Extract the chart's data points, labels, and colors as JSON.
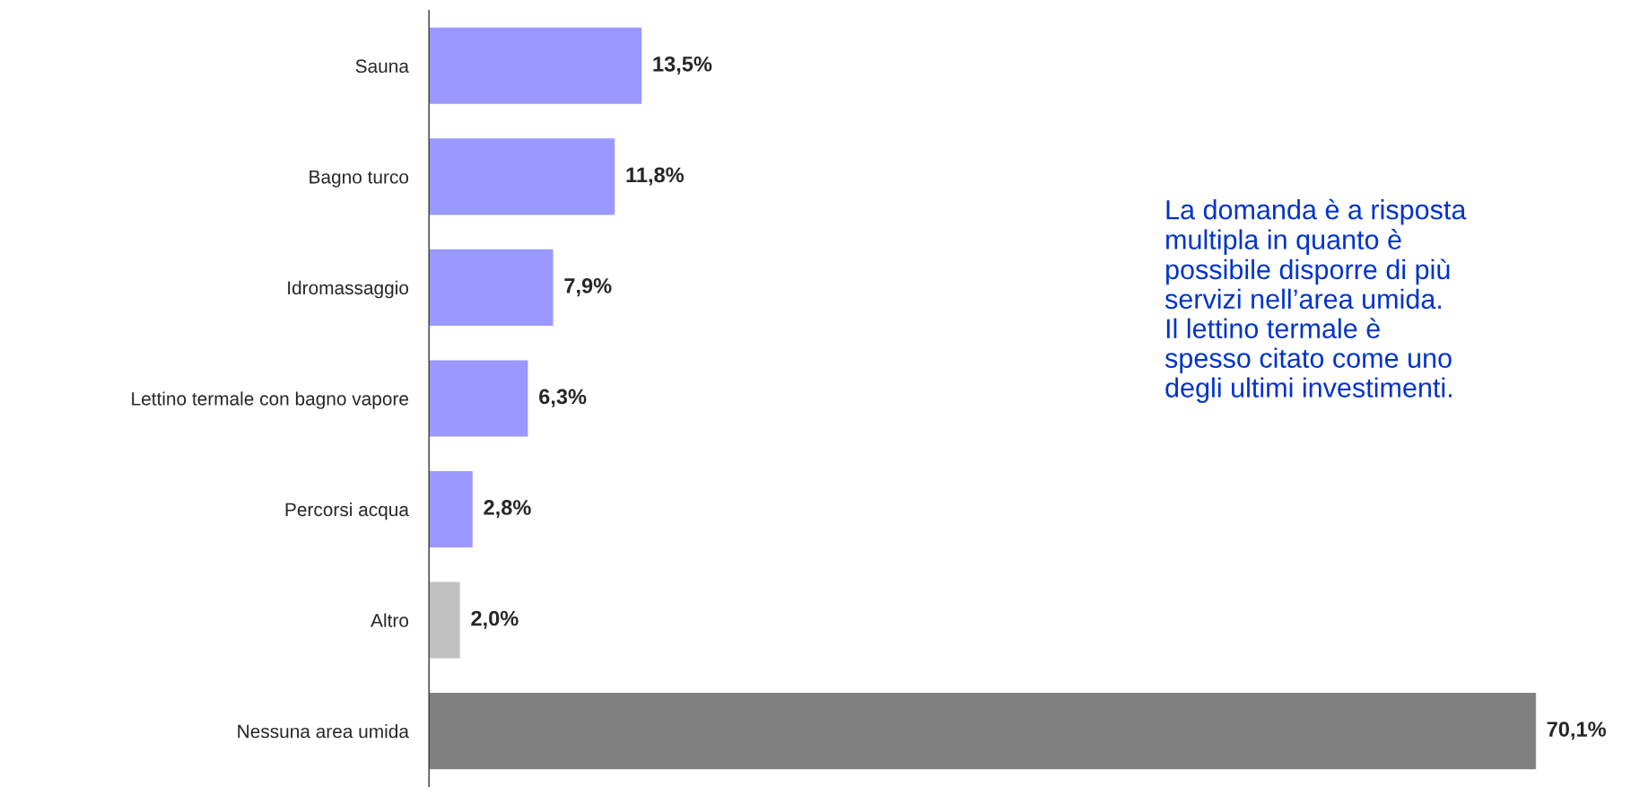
{
  "chart_data": {
    "type": "bar",
    "orientation": "horizontal",
    "categories": [
      "Sauna",
      "Bagno turco",
      "Idromassaggio",
      "Lettino termale con bagno vapore",
      "Percorsi acqua",
      "Altro",
      "Nessuna area umida"
    ],
    "values": [
      13.5,
      11.8,
      7.9,
      6.3,
      2.8,
      2.0,
      70.1
    ],
    "colors": [
      "#9999ff",
      "#9999ff",
      "#9999ff",
      "#9999ff",
      "#9999ff",
      "#c0c0c0",
      "#808080"
    ],
    "value_labels": [
      "13,5%",
      "11,8%",
      "7,9%",
      "6,3%",
      "2,8%",
      "2,0%",
      "70,1%"
    ],
    "tick_labels": "y",
    "grid": false,
    "legend": false,
    "annotations": [
      {
        "text": "La domanda è a risposta\nmultipla in quanto è\npossibile disporre di più\nservizi nell’area umida.\nIl lettino termale è\nspesso citato come uno\ndegli ultimi investimenti."
      }
    ]
  }
}
